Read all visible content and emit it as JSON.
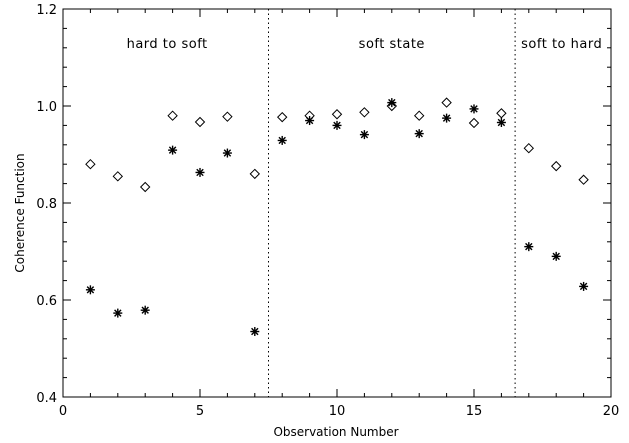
{
  "chart_data": {
    "type": "scatter",
    "title": "",
    "xlabel": "Observation Number",
    "ylabel": "Coherence Function",
    "xlim": [
      0,
      20
    ],
    "ylim": [
      0.4,
      1.2
    ],
    "x_ticks": [
      "0",
      "5",
      "10",
      "15",
      "20"
    ],
    "y_ticks": [
      "0.4",
      "0.6",
      "0.8",
      "1.0",
      "1.2"
    ],
    "grid": false,
    "dividers": [
      7.5,
      16.5
    ],
    "regions": [
      {
        "label": "hard to soft",
        "x": 3.8
      },
      {
        "label": "soft state",
        "x": 12.0
      },
      {
        "label": "soft to hard",
        "x": 18.2
      }
    ],
    "series": [
      {
        "marker": "diamond",
        "x": [
          1,
          2,
          3,
          4,
          5,
          6,
          7,
          8,
          9,
          10,
          11,
          12,
          13,
          14,
          15,
          16,
          17,
          18,
          19
        ],
        "values": [
          0.88,
          0.855,
          0.833,
          0.98,
          0.967,
          0.978,
          0.86,
          0.977,
          0.98,
          0.983,
          0.987,
          1.0,
          0.98,
          1.007,
          0.965,
          0.985,
          0.913,
          0.876,
          0.848
        ]
      },
      {
        "marker": "asterisk",
        "x": [
          1,
          2,
          3,
          4,
          5,
          6,
          7,
          8,
          9,
          10,
          11,
          12,
          13,
          14,
          15,
          16,
          17,
          18,
          19
        ],
        "values": [
          0.621,
          0.573,
          0.579,
          0.909,
          0.863,
          0.903,
          0.535,
          0.929,
          0.97,
          0.96,
          0.941,
          1.007,
          0.943,
          0.975,
          0.994,
          0.966,
          0.71,
          0.69,
          0.628
        ]
      }
    ]
  }
}
